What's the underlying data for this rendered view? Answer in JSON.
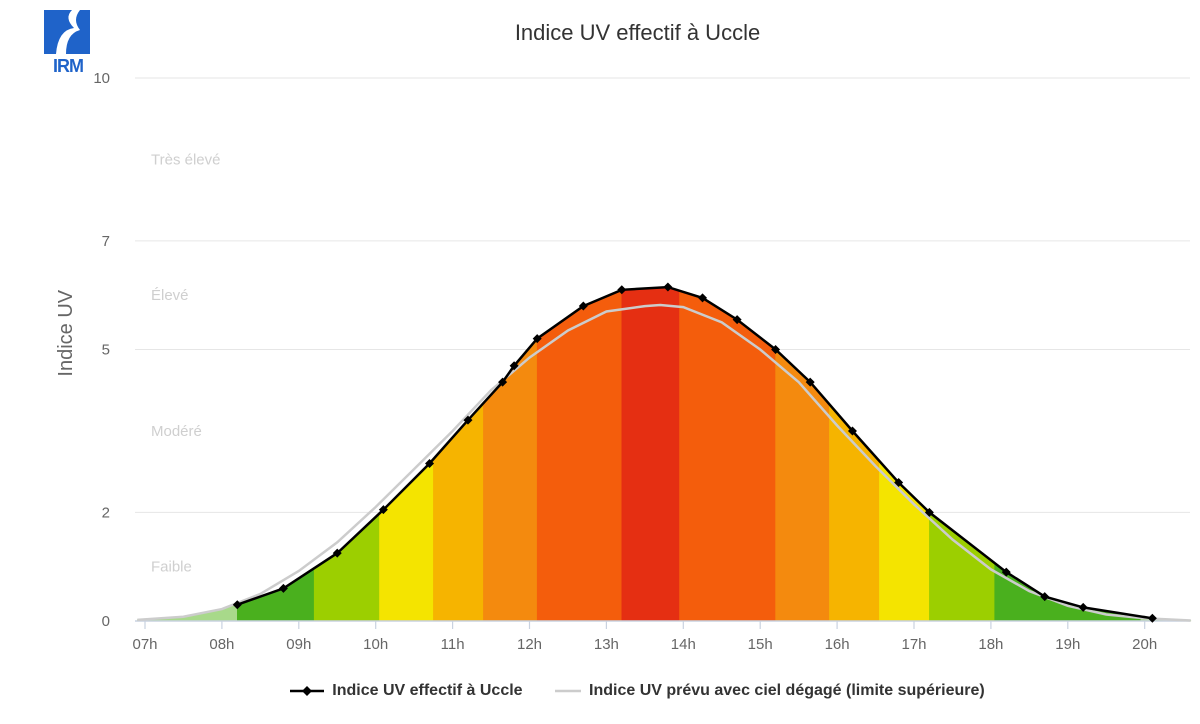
{
  "logo": {
    "text": "IRM",
    "color": "#1f63c9"
  },
  "chart_data": {
    "type": "line",
    "title": "Indice UV effectif à Uccle",
    "ylabel": "Indice UV",
    "xlabel": "",
    "ylim": [
      0,
      10
    ],
    "xlim": [
      6.9,
      20.6
    ],
    "yticks": [
      0,
      2,
      5,
      7,
      10
    ],
    "xticks": [
      {
        "v": 7,
        "label": "07h"
      },
      {
        "v": 8,
        "label": "08h"
      },
      {
        "v": 9,
        "label": "09h"
      },
      {
        "v": 10,
        "label": "10h"
      },
      {
        "v": 11,
        "label": "11h"
      },
      {
        "v": 12,
        "label": "12h"
      },
      {
        "v": 13,
        "label": "13h"
      },
      {
        "v": 14,
        "label": "14h"
      },
      {
        "v": 15,
        "label": "15h"
      },
      {
        "v": 16,
        "label": "16h"
      },
      {
        "v": 17,
        "label": "17h"
      },
      {
        "v": 18,
        "label": "18h"
      },
      {
        "v": 19,
        "label": "19h"
      },
      {
        "v": 20,
        "label": "20h"
      }
    ],
    "bands": [
      {
        "label": "Faible",
        "y": 1
      },
      {
        "label": "Modéré",
        "y": 3.5
      },
      {
        "label": "Élevé",
        "y": 6
      },
      {
        "label": "Très élevé",
        "y": 8.5
      }
    ],
    "grid": true,
    "legend": "bottom",
    "series": [
      {
        "name": "Indice UV effectif à Uccle",
        "color": "#000000",
        "x": [
          8.2,
          8.8,
          9.5,
          10.1,
          10.7,
          11.2,
          11.65,
          11.8,
          12.1,
          12.7,
          13.2,
          13.8,
          14.25,
          14.7,
          15.2,
          15.65,
          16.2,
          16.8,
          17.2,
          18.2,
          18.7,
          19.2,
          20.1
        ],
        "y": [
          0.3,
          0.6,
          1.25,
          2.05,
          2.9,
          3.7,
          4.4,
          4.7,
          5.2,
          5.8,
          6.1,
          6.15,
          5.95,
          5.55,
          5.0,
          4.4,
          3.5,
          2.55,
          2.0,
          0.9,
          0.45,
          0.25,
          0.05
        ]
      },
      {
        "name": "Indice UV prévu avec ciel dégagé (limite supérieure)",
        "color": "#cccccc",
        "x": [
          6.9,
          7.5,
          8.0,
          8.5,
          9.0,
          9.5,
          10.0,
          10.5,
          11.0,
          11.5,
          12.0,
          12.5,
          13.0,
          13.5,
          13.7,
          14.0,
          14.5,
          15.0,
          15.5,
          16.0,
          16.5,
          17.0,
          17.5,
          18.0,
          18.5,
          19.0,
          19.5,
          20.0,
          20.6
        ],
        "y": [
          0.02,
          0.08,
          0.22,
          0.5,
          0.92,
          1.45,
          2.1,
          2.8,
          3.5,
          4.25,
          4.85,
          5.35,
          5.7,
          5.8,
          5.82,
          5.78,
          5.5,
          5.0,
          4.4,
          3.6,
          2.85,
          2.15,
          1.5,
          0.95,
          0.55,
          0.28,
          0.12,
          0.05,
          0.01
        ]
      }
    ],
    "fill_segments": [
      {
        "from": 6.9,
        "to": 8.2,
        "color": "#a8d98a"
      },
      {
        "from": 8.2,
        "to": 9.2,
        "color": "#4ab01e"
      },
      {
        "from": 9.2,
        "to": 10.05,
        "color": "#9ccf00"
      },
      {
        "from": 10.05,
        "to": 10.75,
        "color": "#f4e400"
      },
      {
        "from": 10.75,
        "to": 11.4,
        "color": "#f6b400"
      },
      {
        "from": 11.4,
        "to": 12.1,
        "color": "#f48a0e"
      },
      {
        "from": 12.1,
        "to": 13.2,
        "color": "#f45d0c"
      },
      {
        "from": 13.2,
        "to": 13.95,
        "color": "#e52f12"
      },
      {
        "from": 13.95,
        "to": 15.2,
        "color": "#f45d0c"
      },
      {
        "from": 15.2,
        "to": 15.9,
        "color": "#f48a0e"
      },
      {
        "from": 15.9,
        "to": 16.55,
        "color": "#f6b400"
      },
      {
        "from": 16.55,
        "to": 17.2,
        "color": "#f4e400"
      },
      {
        "from": 17.2,
        "to": 18.05,
        "color": "#9ccf00"
      },
      {
        "from": 18.05,
        "to": 19.95,
        "color": "#4ab01e"
      },
      {
        "from": 19.95,
        "to": 20.6,
        "color": "#a8d98a"
      }
    ]
  }
}
